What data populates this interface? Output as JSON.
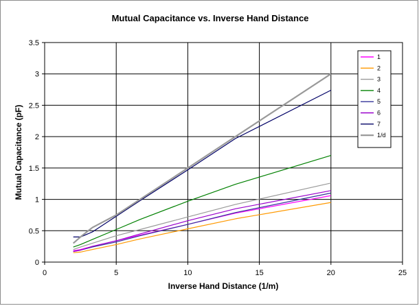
{
  "chart_data": {
    "type": "line",
    "title": "Mutual Capacitance vs. Inverse Hand Distance",
    "xlabel": "Inverse Hand Distance (1/m)",
    "ylabel": "Mutual Capacitance (pF)",
    "xlim": [
      0,
      25
    ],
    "ylim": [
      0,
      3.5
    ],
    "xticks": [
      0,
      5,
      10,
      15,
      20,
      25
    ],
    "yticks": [
      0,
      0.5,
      1,
      1.5,
      2,
      2.5,
      3,
      3.5
    ],
    "xtick_labels": [
      "0",
      "5",
      "10",
      "15",
      "20",
      "25"
    ],
    "ytick_labels": [
      "0",
      "0.5",
      "1",
      "1.5",
      "2",
      "2.5",
      "3",
      "3.5"
    ],
    "grid": true,
    "legend_position": "right",
    "x": [
      2,
      2.5,
      3.33,
      5,
      6.67,
      10,
      13.33,
      20
    ],
    "series": [
      {
        "name": "1",
        "color": "#ff00ff",
        "values": [
          0.18,
          0.2,
          0.25,
          0.34,
          0.43,
          0.6,
          0.78,
          1.06
        ]
      },
      {
        "name": "2",
        "color": "#ff9900",
        "values": [
          0.15,
          0.16,
          0.2,
          0.28,
          0.37,
          0.53,
          0.69,
          0.95
        ]
      },
      {
        "name": "3",
        "color": "#999999",
        "values": [
          0.2,
          0.24,
          0.3,
          0.42,
          0.52,
          0.72,
          0.92,
          1.26
        ]
      },
      {
        "name": "4",
        "color": "#008000",
        "values": [
          0.24,
          0.28,
          0.36,
          0.52,
          0.68,
          0.97,
          1.24,
          1.7
        ]
      },
      {
        "name": "5",
        "color": "#333399",
        "values": [
          0.17,
          0.19,
          0.24,
          0.32,
          0.42,
          0.6,
          0.79,
          1.1
        ]
      },
      {
        "name": "6",
        "color": "#9900cc",
        "values": [
          0.17,
          0.19,
          0.25,
          0.34,
          0.45,
          0.66,
          0.85,
          1.14
        ]
      },
      {
        "name": "7",
        "color": "#000066",
        "values": [
          0.4,
          0.4,
          0.48,
          0.73,
          0.98,
          1.47,
          1.97,
          2.74
        ]
      },
      {
        "name": "1/d",
        "color": "#999999",
        "values": [
          0.3,
          0.4,
          0.55,
          0.75,
          1.0,
          1.5,
          2.0,
          3.0
        ]
      }
    ]
  }
}
